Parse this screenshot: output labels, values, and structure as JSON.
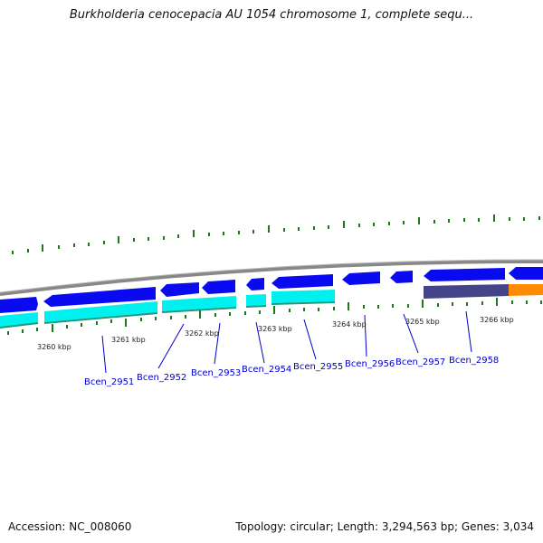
{
  "title": "Burkholderia cenocepacia AU 1054 chromosome 1, complete sequ...",
  "accession": "Accession: NC_008060",
  "summary": "Topology: circular; Length: 3,294,563 bp; Genes: 3,034",
  "colors": {
    "forward_gene": "#0a0af0",
    "reverse_gene": "#00f0f0",
    "rna_track": "#444488",
    "highlight_gene": "#ff8c00",
    "backbone": "#888888",
    "tick": "#1a7a1a",
    "label": "#0000cc"
  },
  "axis_ticks": [
    {
      "label": "3260 kbp"
    },
    {
      "label": "3261 kbp"
    },
    {
      "label": "3262 kbp"
    },
    {
      "label": "3263 kbp"
    },
    {
      "label": "3264 kbp"
    },
    {
      "label": "3265 kbp"
    },
    {
      "label": "3266 kbp"
    }
  ],
  "gene_labels": [
    {
      "label": "Bcen_2951"
    },
    {
      "label": "Bcen_2952"
    },
    {
      "label": "Bcen_2953"
    },
    {
      "label": "Bcen_2954"
    },
    {
      "label": "Bcen_2955"
    },
    {
      "label": "Bcen_2956"
    },
    {
      "label": "Bcen_2957"
    },
    {
      "label": "Bcen_2958"
    }
  ]
}
